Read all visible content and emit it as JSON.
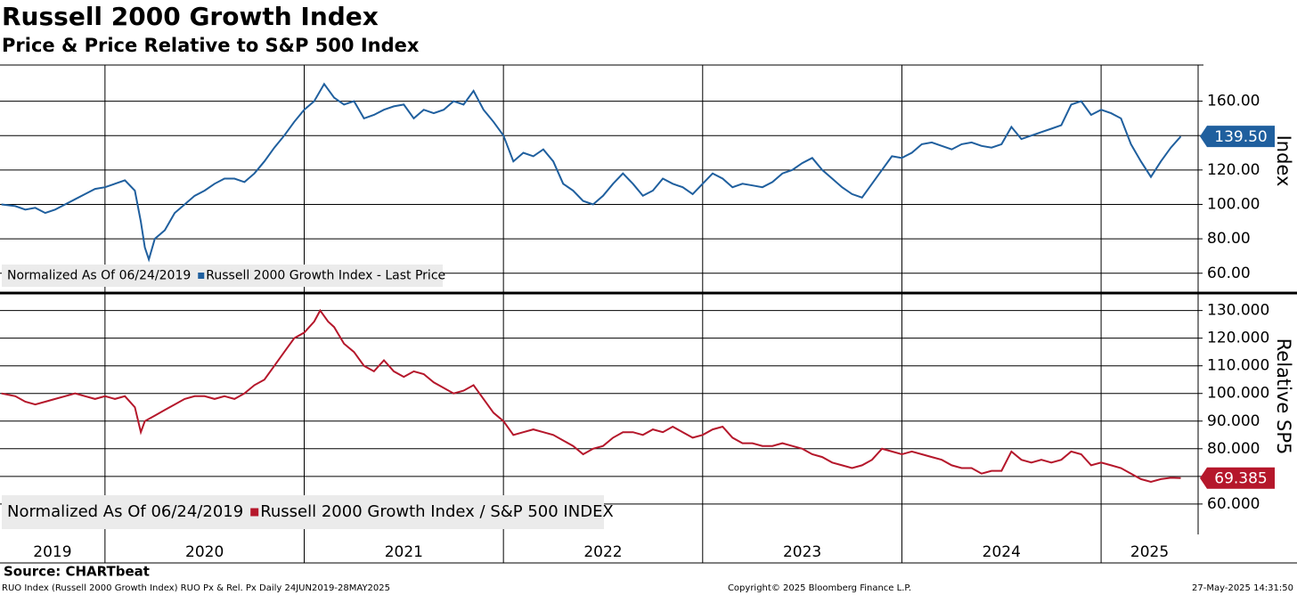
{
  "title": "Russell 2000 Growth Index",
  "subtitle": "Price & Price Relative to S&P 500 Index",
  "source": "Source: CHARTbeat",
  "footer": {
    "left": "RUO Index (Russell 2000 Growth Index) RUO Px & Rel. Px  Daily 24JUN2019-28MAY2025",
    "center": "Copyright© 2025 Bloomberg Finance L.P.",
    "right": "27-May-2025 14:31:50"
  },
  "chart_data": [
    {
      "type": "line",
      "y_axis_title": "Index",
      "legend_note": "Normalized As Of 06/24/2019",
      "xlim": [
        2019.473,
        2025.487
      ],
      "xticks": [
        2019,
        2020,
        2021,
        2022,
        2023,
        2024,
        2025
      ],
      "ylim": [
        49,
        181
      ],
      "yticks": [
        {
          "value": 60,
          "label": "60.00"
        },
        {
          "value": 80,
          "label": "80.00"
        },
        {
          "value": 100,
          "label": "100.00"
        },
        {
          "value": 120,
          "label": "120.00"
        },
        {
          "value": 140,
          "label": "140.00"
        },
        {
          "value": 160,
          "label": "160.00"
        }
      ],
      "grid": true,
      "x": [
        2019.48,
        2019.55,
        2019.6,
        2019.65,
        2019.7,
        2019.75,
        2019.8,
        2019.85,
        2019.9,
        2019.95,
        2020,
        2020.05,
        2020.1,
        2020.15,
        2020.18,
        2020.2,
        2020.22,
        2020.25,
        2020.3,
        2020.35,
        2020.4,
        2020.45,
        2020.5,
        2020.55,
        2020.6,
        2020.65,
        2020.7,
        2020.75,
        2020.8,
        2020.85,
        2020.9,
        2020.95,
        2021,
        2021.05,
        2021.1,
        2021.15,
        2021.2,
        2021.25,
        2021.3,
        2021.35,
        2021.4,
        2021.45,
        2021.5,
        2021.55,
        2021.6,
        2021.65,
        2021.7,
        2021.75,
        2021.8,
        2021.85,
        2021.9,
        2021.95,
        2022,
        2022.05,
        2022.1,
        2022.15,
        2022.2,
        2022.25,
        2022.3,
        2022.35,
        2022.4,
        2022.45,
        2022.5,
        2022.55,
        2022.6,
        2022.65,
        2022.7,
        2022.75,
        2022.8,
        2022.85,
        2022.9,
        2022.95,
        2023,
        2023.05,
        2023.1,
        2023.15,
        2023.2,
        2023.25,
        2023.3,
        2023.35,
        2023.4,
        2023.45,
        2023.5,
        2023.55,
        2023.6,
        2023.65,
        2023.7,
        2023.75,
        2023.8,
        2023.85,
        2023.9,
        2023.95,
        2024,
        2024.05,
        2024.1,
        2024.15,
        2024.2,
        2024.25,
        2024.3,
        2024.35,
        2024.4,
        2024.45,
        2024.5,
        2024.55,
        2024.6,
        2024.65,
        2024.7,
        2024.75,
        2024.8,
        2024.85,
        2024.9,
        2024.95,
        2025,
        2025.05,
        2025.1,
        2025.15,
        2025.2,
        2025.25,
        2025.3,
        2025.35,
        2025.4
      ],
      "series": [
        {
          "name": "Russell 2000 Growth Index - Last Price",
          "color": "#1f5f9e",
          "last_label": {
            "value": 139.5,
            "label": "139.50"
          },
          "values": [
            100,
            99,
            97,
            98,
            95,
            97,
            100,
            103,
            106,
            109,
            110,
            112,
            114,
            108,
            90,
            75,
            68,
            80,
            85,
            95,
            100,
            105,
            108,
            112,
            115,
            115,
            113,
            118,
            125,
            133,
            140,
            148,
            155,
            160,
            170,
            162,
            158,
            160,
            150,
            152,
            155,
            157,
            158,
            150,
            155,
            153,
            155,
            160,
            158,
            166,
            155,
            148,
            140,
            125,
            130,
            128,
            132,
            125,
            112,
            108,
            102,
            100,
            105,
            112,
            118,
            112,
            105,
            108,
            115,
            112,
            110,
            106,
            112,
            118,
            115,
            110,
            112,
            111,
            110,
            113,
            118,
            120,
            124,
            127,
            120,
            115,
            110,
            106,
            104,
            112,
            120,
            128,
            127,
            130,
            135,
            136,
            134,
            132,
            135,
            136,
            134,
            133,
            135,
            145,
            138,
            140,
            142,
            144,
            146,
            158,
            160,
            152,
            155,
            153,
            150,
            135,
            125,
            116,
            125,
            133,
            139.5
          ]
        }
      ]
    },
    {
      "type": "line",
      "y_axis_title": "Relative SP5",
      "legend_note": "Normalized As Of 06/24/2019",
      "xlim": [
        2019.473,
        2025.487
      ],
      "xticks": [
        2019,
        2020,
        2021,
        2022,
        2023,
        2024,
        2025
      ],
      "ylim": [
        49,
        136
      ],
      "yticks": [
        {
          "value": 60,
          "label": "60.000"
        },
        {
          "value": 70,
          "label": "70.000"
        },
        {
          "value": 80,
          "label": "80.000"
        },
        {
          "value": 90,
          "label": "90.000"
        },
        {
          "value": 100,
          "label": "100.000"
        },
        {
          "value": 110,
          "label": "110.000"
        },
        {
          "value": 120,
          "label": "120.000"
        },
        {
          "value": 130,
          "label": "130.000"
        }
      ],
      "grid": true,
      "x": [
        2019.48,
        2019.55,
        2019.6,
        2019.65,
        2019.7,
        2019.75,
        2019.8,
        2019.85,
        2019.9,
        2019.95,
        2020,
        2020.05,
        2020.1,
        2020.15,
        2020.18,
        2020.2,
        2020.25,
        2020.3,
        2020.35,
        2020.4,
        2020.45,
        2020.5,
        2020.55,
        2020.6,
        2020.65,
        2020.7,
        2020.75,
        2020.8,
        2020.85,
        2020.9,
        2020.95,
        2021,
        2021.05,
        2021.08,
        2021.12,
        2021.15,
        2021.2,
        2021.25,
        2021.3,
        2021.35,
        2021.4,
        2021.45,
        2021.5,
        2021.55,
        2021.6,
        2021.65,
        2021.7,
        2021.75,
        2021.8,
        2021.85,
        2021.9,
        2021.95,
        2022,
        2022.05,
        2022.1,
        2022.15,
        2022.2,
        2022.25,
        2022.3,
        2022.35,
        2022.4,
        2022.45,
        2022.5,
        2022.55,
        2022.6,
        2022.65,
        2022.7,
        2022.75,
        2022.8,
        2022.85,
        2022.9,
        2022.95,
        2023,
        2023.05,
        2023.1,
        2023.15,
        2023.2,
        2023.25,
        2023.3,
        2023.35,
        2023.4,
        2023.45,
        2023.5,
        2023.55,
        2023.6,
        2023.65,
        2023.7,
        2023.75,
        2023.8,
        2023.85,
        2023.9,
        2023.95,
        2024,
        2024.05,
        2024.1,
        2024.15,
        2024.2,
        2024.25,
        2024.3,
        2024.35,
        2024.4,
        2024.45,
        2024.5,
        2024.55,
        2024.6,
        2024.65,
        2024.7,
        2024.75,
        2024.8,
        2024.85,
        2024.9,
        2024.95,
        2025,
        2025.05,
        2025.1,
        2025.15,
        2025.2,
        2025.25,
        2025.3,
        2025.35,
        2025.4
      ],
      "series": [
        {
          "name": "Russell 2000 Growth Index / S&P 500 INDEX",
          "color": "#b5172b",
          "last_label": {
            "value": 69.385,
            "label": "69.385"
          },
          "values": [
            100,
            99,
            97,
            96,
            97,
            98,
            99,
            100,
            99,
            98,
            99,
            98,
            99,
            95,
            86,
            90,
            92,
            94,
            96,
            98,
            99,
            99,
            98,
            99,
            98,
            100,
            103,
            105,
            110,
            115,
            120,
            122,
            126,
            130,
            126,
            124,
            118,
            115,
            110,
            108,
            112,
            108,
            106,
            108,
            107,
            104,
            102,
            100,
            101,
            103,
            98,
            93,
            90,
            85,
            86,
            87,
            86,
            85,
            83,
            81,
            78,
            80,
            81,
            84,
            86,
            86,
            85,
            87,
            86,
            88,
            86,
            84,
            85,
            87,
            88,
            84,
            82,
            82,
            81,
            81,
            82,
            81,
            80,
            78,
            77,
            75,
            74,
            73,
            74,
            76,
            80,
            79,
            78,
            79,
            78,
            77,
            76,
            74,
            73,
            73,
            71,
            72,
            72,
            79,
            76,
            75,
            76,
            75,
            76,
            79,
            78,
            74,
            75,
            74,
            73,
            71,
            69,
            68,
            69,
            69.5,
            69.385
          ]
        }
      ]
    }
  ]
}
